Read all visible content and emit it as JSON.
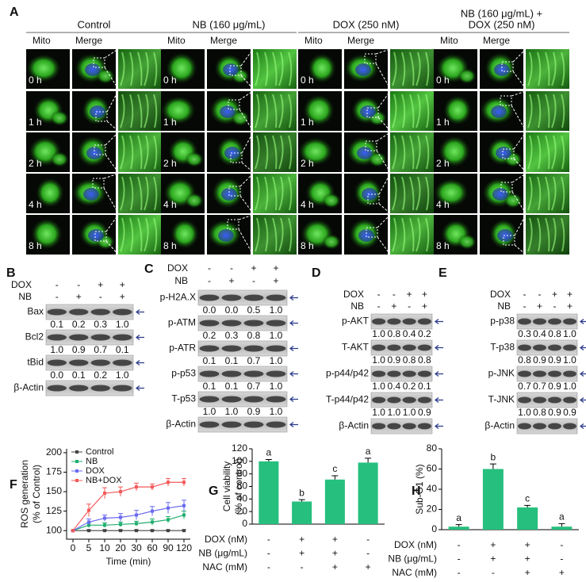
{
  "panel_A": {
    "label": "A",
    "groups": [
      {
        "title": [
          "Control"
        ]
      },
      {
        "title": [
          "NB (160 μg/mL)"
        ]
      },
      {
        "title": [
          "DOX (250 nM)"
        ]
      },
      {
        "title": [
          "NB (160 μg/mL) +",
          "DOX (250 nM)"
        ]
      }
    ],
    "columns": [
      "Mito",
      "Merge"
    ],
    "times": [
      "0 h",
      "1 h",
      "2 h",
      "4 h",
      "8 h"
    ]
  },
  "blots": [
    {
      "label": "B",
      "conditions": [
        {
          "name": "DOX",
          "signs": [
            "-",
            "-",
            "+",
            "+"
          ]
        },
        {
          "name": "NB",
          "signs": [
            "-",
            "+",
            "-",
            "+"
          ]
        }
      ],
      "bands": [
        {
          "name": "Bax",
          "values": [
            "0.1",
            "0.2",
            "0.3",
            "1.0"
          ]
        },
        {
          "name": "Bcl2",
          "values": [
            "1.0",
            "0.9",
            "0.7",
            "0.1"
          ]
        },
        {
          "name": "tBid",
          "values": [
            "0.0",
            "0.1",
            "0.2",
            "1.0"
          ]
        },
        {
          "name": "β-Actin"
        }
      ]
    },
    {
      "label": "C",
      "conditions": [
        {
          "name": "DOX",
          "signs": [
            "-",
            "-",
            "+",
            "+"
          ]
        },
        {
          "name": "NB",
          "signs": [
            "-",
            "+",
            "-",
            "+"
          ]
        }
      ],
      "bands": [
        {
          "name": "p-H2A.X",
          "values": [
            "0.0",
            "0.0",
            "0.5",
            "1.0"
          ]
        },
        {
          "name": "p-ATM",
          "values": [
            "0.2",
            "0.3",
            "0.8",
            "1.0"
          ]
        },
        {
          "name": "p-ATR",
          "values": [
            "0.1",
            "0.1",
            "0.7",
            "1.0"
          ]
        },
        {
          "name": "p-p53",
          "values": [
            "0.1",
            "0.1",
            "0.7",
            "1.0"
          ]
        },
        {
          "name": "T-p53",
          "values": [
            "1.0",
            "1.0",
            "0.9",
            "1.0"
          ]
        },
        {
          "name": "β-Actin"
        }
      ]
    },
    {
      "label": "D",
      "conditions": [
        {
          "name": "DOX",
          "signs": [
            "-",
            "-",
            "+",
            "+"
          ]
        },
        {
          "name": "NB",
          "signs": [
            "-",
            "+",
            "-",
            "+"
          ]
        }
      ],
      "bands": [
        {
          "name": "p-AKT",
          "values": [
            "1.0",
            "0.8",
            "0.4",
            "0.2"
          ]
        },
        {
          "name": "T-AKT",
          "values": [
            "1.0",
            "0.9",
            "0.8",
            "0.8"
          ]
        },
        {
          "name": "p-p44/p42",
          "values": [
            "1.0",
            "0.4",
            "0.2",
            "0.1"
          ]
        },
        {
          "name": "T-p44/p42",
          "values": [
            "1.0",
            "1.0",
            "1.0",
            "0.9"
          ]
        },
        {
          "name": "β-Actin"
        }
      ]
    },
    {
      "label": "E",
      "conditions": [
        {
          "name": "DOX",
          "signs": [
            "-",
            "-",
            "+",
            "+"
          ]
        },
        {
          "name": "NB",
          "signs": [
            "-",
            "+",
            "-",
            "+"
          ]
        }
      ],
      "bands": [
        {
          "name": "p-p38",
          "values": [
            "0.3",
            "0.4",
            "0.8",
            "1.0"
          ]
        },
        {
          "name": "T-p38",
          "values": [
            "0.8",
            "0.9",
            "0.9",
            "1.0"
          ]
        },
        {
          "name": "p-JNK",
          "values": [
            "0.7",
            "0.7",
            "0.9",
            "1.0"
          ]
        },
        {
          "name": "T-JNK",
          "values": [
            "1.0",
            "0.8",
            "0.9",
            "0.9"
          ]
        },
        {
          "name": "β-Actin"
        }
      ]
    }
  ],
  "chart_data": [
    {
      "panel_label": "F",
      "type": "line",
      "xlabel": "Time (min)",
      "ylabel": [
        "ROS generation",
        "(% of Control)"
      ],
      "categories": [
        "0",
        "5",
        "10",
        "20",
        "30",
        "60",
        "90",
        "120"
      ],
      "ylim": [
        89,
        205
      ],
      "yticks": [
        100,
        125,
        150,
        175,
        200
      ],
      "series": [
        {
          "name": "Control",
          "color": "#444444",
          "values": [
            100,
            100,
            100,
            100,
            100,
            100,
            100,
            100
          ],
          "errors": [
            0,
            1,
            1,
            1,
            1,
            1,
            1,
            1
          ]
        },
        {
          "name": "NB",
          "color": "#1fae6e",
          "values": [
            100,
            107,
            107,
            108,
            109,
            111,
            114,
            120
          ],
          "errors": [
            0,
            3,
            3,
            3,
            3,
            4,
            4,
            5
          ]
        },
        {
          "name": "DOX",
          "color": "#6a6af0",
          "values": [
            100,
            111,
            116,
            117,
            120,
            125,
            129,
            132
          ],
          "errors": [
            0,
            4,
            4,
            5,
            6,
            6,
            7,
            7
          ]
        },
        {
          "name": "NB+DOX",
          "color": "#f25a5a",
          "values": [
            100,
            126,
            148,
            150,
            156,
            156,
            162,
            162
          ],
          "errors": [
            0,
            8,
            7,
            6,
            5,
            4,
            5,
            5
          ]
        }
      ]
    },
    {
      "panel_label": "G",
      "type": "bar",
      "ylabel": [
        "Cell viability",
        "(% of control)"
      ],
      "color": "#26bf7e",
      "values": [
        100,
        36,
        71,
        98
      ],
      "errors": [
        3,
        3,
        6,
        7
      ],
      "annotations": [
        "a",
        "b",
        "c",
        "a"
      ],
      "ylim": [
        0,
        120
      ],
      "yticks": [
        0,
        20,
        40,
        60,
        80,
        100,
        120
      ],
      "conditions": [
        {
          "name": "DOX (nM)",
          "signs": [
            "-",
            "+",
            "+",
            "-"
          ]
        },
        {
          "name": "NB (μg/mL)",
          "signs": [
            "-",
            "+",
            "+",
            "-"
          ]
        },
        {
          "name": "NAC (mM)",
          "signs": [
            "-",
            "-",
            "+",
            "+"
          ]
        }
      ]
    },
    {
      "panel_label": "H",
      "type": "bar",
      "ylabel": [
        "Sub-G1 (%)"
      ],
      "color": "#26bf7e",
      "values": [
        3,
        60,
        22,
        3
      ],
      "errors": [
        2,
        5,
        2,
        3
      ],
      "annotations": [
        "a",
        "b",
        "c",
        "a"
      ],
      "ylim": [
        0,
        80
      ],
      "yticks": [
        0,
        20,
        40,
        60,
        80
      ],
      "conditions": [
        {
          "name": "DOX (nM)",
          "signs": [
            "-",
            "+",
            "+",
            "-"
          ]
        },
        {
          "name": "NB (μg/mL)",
          "signs": [
            "-",
            "+",
            "+",
            "-"
          ]
        },
        {
          "name": "NAC (mM)",
          "signs": [
            "-",
            "-",
            "+",
            "+"
          ]
        }
      ]
    }
  ]
}
